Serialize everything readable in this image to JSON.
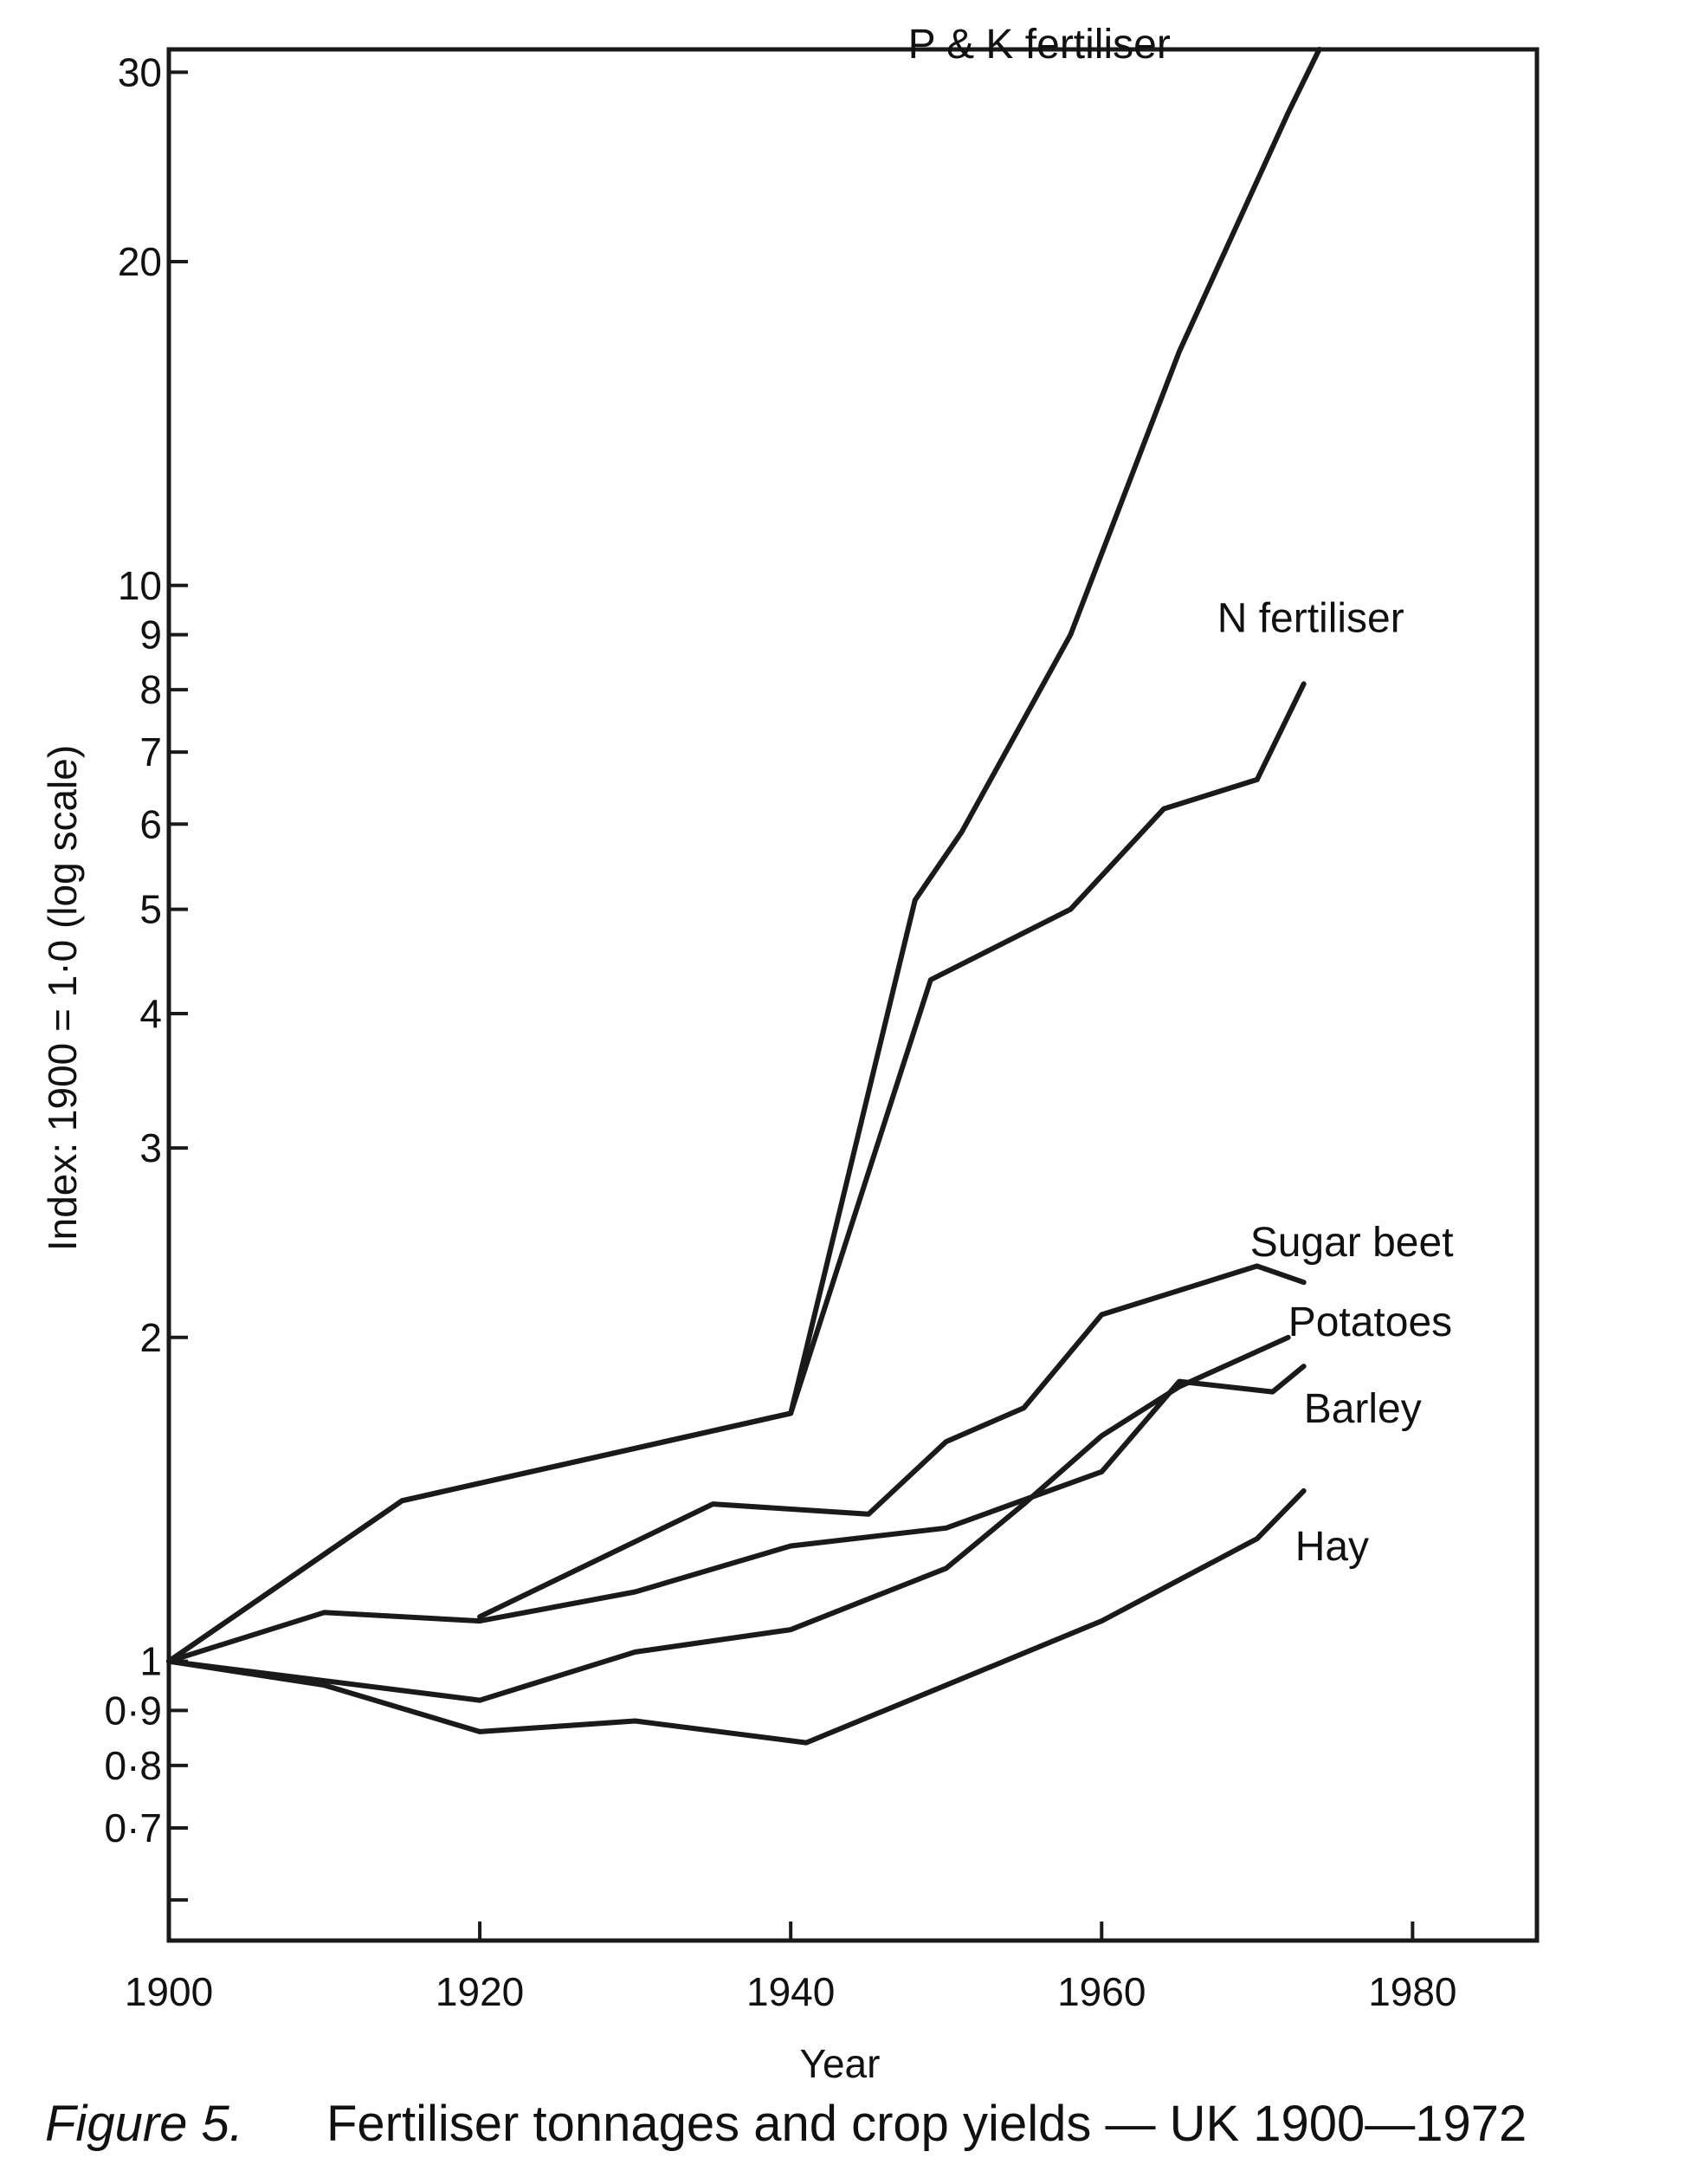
{
  "chart_data": {
    "type": "line",
    "ylabel": "Index: 1900 = 1·0 (log scale)",
    "xlabel": "Year",
    "y_scale": "log",
    "xlim": [
      1900,
      1988
    ],
    "ylim": [
      0.55,
      31.5
    ],
    "x_ticks": [
      {
        "value": 1900,
        "label": "1900"
      },
      {
        "value": 1920,
        "label": "1920"
      },
      {
        "value": 1940,
        "label": "1940"
      },
      {
        "value": 1960,
        "label": "1960"
      },
      {
        "value": 1980,
        "label": "1980"
      }
    ],
    "y_ticks": [
      {
        "value": 0.6,
        "label": ""
      },
      {
        "value": 0.7,
        "label": "0·7"
      },
      {
        "value": 0.8,
        "label": "0·8"
      },
      {
        "value": 0.9,
        "label": "0·9"
      },
      {
        "value": 1,
        "label": "1"
      },
      {
        "value": 2,
        "label": "2"
      },
      {
        "value": 3,
        "label": "3"
      },
      {
        "value": 4,
        "label": "4"
      },
      {
        "value": 5,
        "label": "5"
      },
      {
        "value": 6,
        "label": "6"
      },
      {
        "value": 7,
        "label": "7"
      },
      {
        "value": 8,
        "label": "8"
      },
      {
        "value": 9,
        "label": "9"
      },
      {
        "value": 10,
        "label": "10"
      },
      {
        "value": 20,
        "label": "20"
      },
      {
        "value": 30,
        "label": "30"
      }
    ],
    "grid": false,
    "series": [
      {
        "name": "P & K fertiliser",
        "x": [
          1900,
          1915,
          1940,
          1948,
          1951,
          1958,
          1965,
          1972,
          1974
        ],
        "y": [
          1.0,
          1.41,
          1.7,
          5.1,
          5.9,
          9.0,
          16.5,
          27.5,
          31.5
        ]
      },
      {
        "name": "N fertiliser",
        "x": [
          1900,
          1915,
          1940,
          1949,
          1958,
          1964,
          1970,
          1973
        ],
        "y": [
          1.0,
          1.41,
          1.7,
          4.3,
          5.0,
          6.2,
          6.6,
          8.1
        ]
      },
      {
        "name": "Sugar beet",
        "x": [
          1920,
          1935,
          1945,
          1950,
          1955,
          1960,
          1970,
          1973
        ],
        "y": [
          1.1,
          1.4,
          1.37,
          1.6,
          1.72,
          2.1,
          2.33,
          2.25
        ]
      },
      {
        "name": "Potatoes",
        "x": [
          1900,
          1920,
          1930,
          1940,
          1950,
          1955,
          1960,
          1965,
          1972
        ],
        "y": [
          1.0,
          0.92,
          1.02,
          1.07,
          1.22,
          1.4,
          1.62,
          1.8,
          2.0
        ]
      },
      {
        "name": "Barley",
        "x": [
          1900,
          1910,
          1920,
          1930,
          1940,
          1950,
          1960,
          1965,
          1971,
          1973
        ],
        "y": [
          1.0,
          1.11,
          1.09,
          1.16,
          1.28,
          1.33,
          1.5,
          1.82,
          1.78,
          1.88
        ]
      },
      {
        "name": "Hay",
        "x": [
          1900,
          1910,
          1920,
          1930,
          1941,
          1950,
          1960,
          1970,
          1973
        ],
        "y": [
          1.0,
          0.95,
          0.86,
          0.88,
          0.84,
          0.95,
          1.09,
          1.3,
          1.44
        ]
      }
    ]
  },
  "caption": {
    "figure_number": "Figure 5.",
    "text": "Fertiliser tonnages and crop yields — UK 1900—1972"
  }
}
